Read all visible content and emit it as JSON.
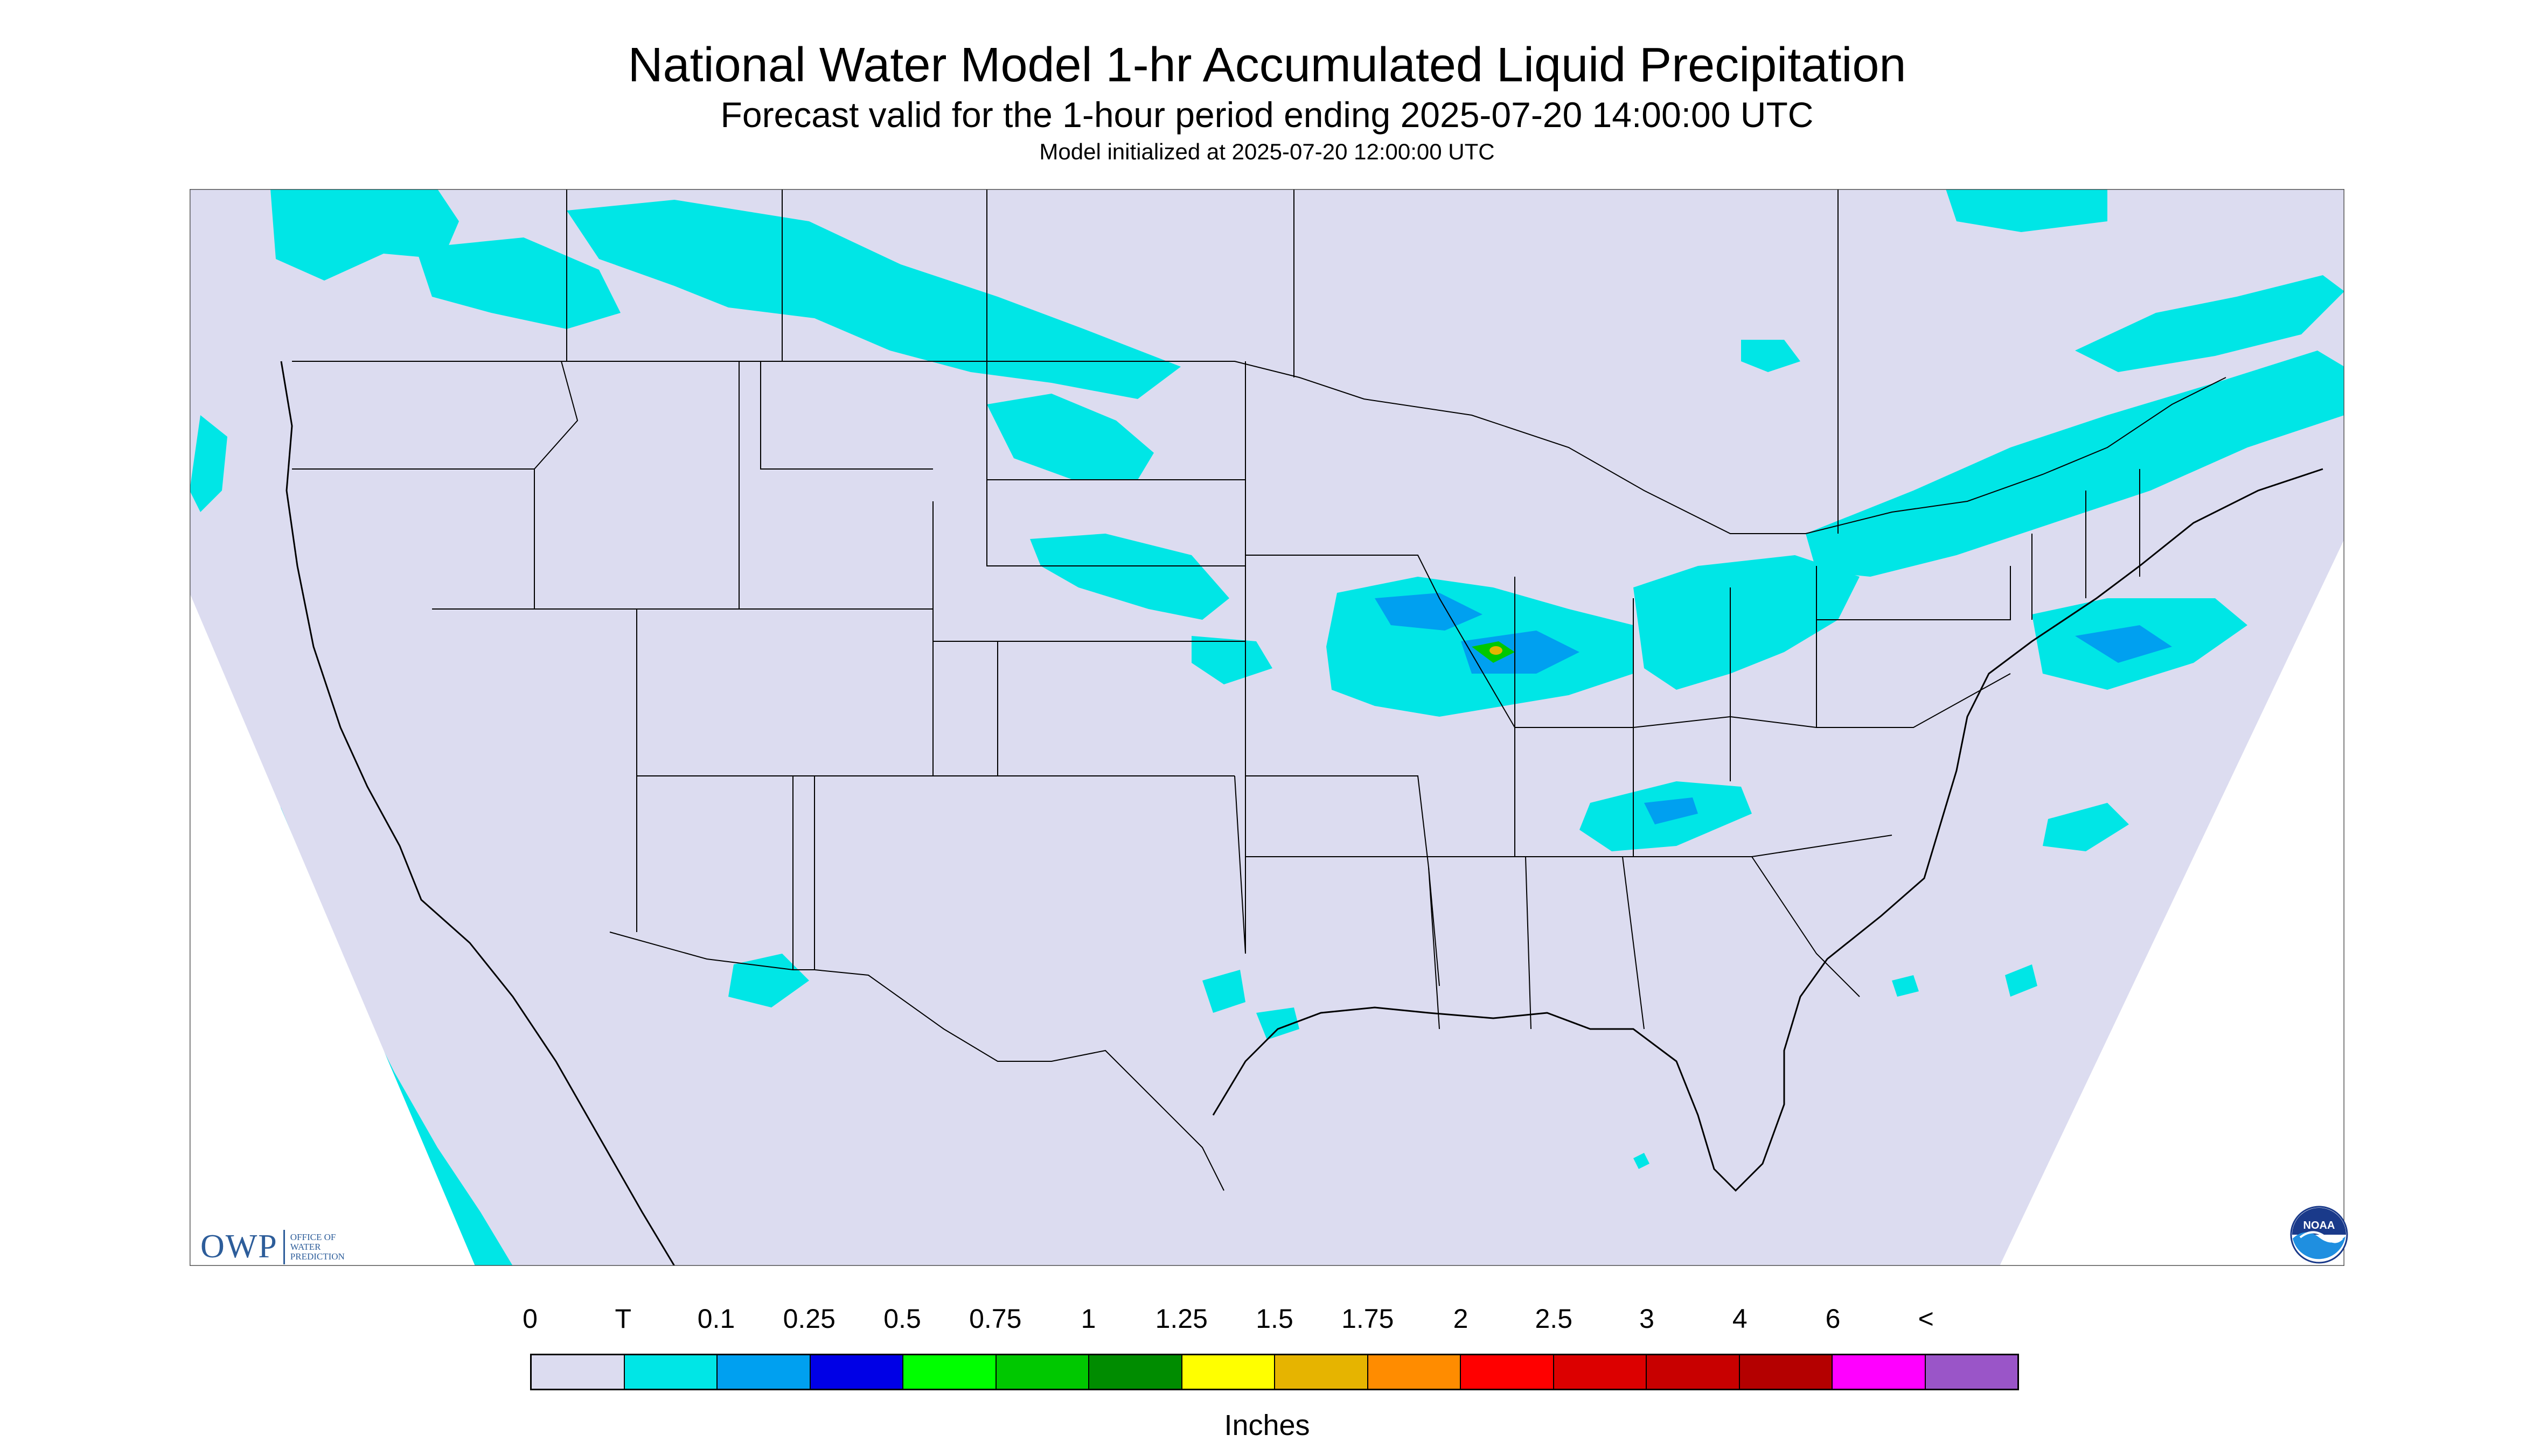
{
  "title": "National Water Model 1-hr Accumulated Liquid Precipitation",
  "subtitle": "Forecast valid for the 1-hour period ending 2025-07-20 14:00:00 UTC",
  "init_line": "Model initialized at 2025-07-20 12:00:00 UTC",
  "legend": {
    "units": "Inches",
    "tick_labels": [
      "0",
      "T",
      "0.1",
      "0.25",
      "0.5",
      "0.75",
      "1",
      "1.25",
      "1.5",
      "1.75",
      "2",
      "2.5",
      "3",
      "4",
      "6",
      "<"
    ],
    "colors": [
      "#dcdcf0",
      "#00e6e6",
      "#00a0f0",
      "#0000e6",
      "#00ff00",
      "#00c800",
      "#008c00",
      "#ffff00",
      "#e6b400",
      "#ff8c00",
      "#ff0000",
      "#dc0000",
      "#c80000",
      "#b40000",
      "#ff00ff",
      "#9a55c8"
    ]
  },
  "logos": {
    "owp_mark": "OWP",
    "owp_text": [
      "OFFICE OF",
      "WATER",
      "PREDICTION"
    ],
    "noaa_text": "NOAA"
  },
  "map": {
    "background_color": "#dcdcf0",
    "outside_color": "#ffffff",
    "line_color": "#000000",
    "trace_color": "#00e6e6",
    "light_color": "#00a0f0",
    "moderate_color": "#0000e6",
    "heavy_color": "#00c800"
  }
}
